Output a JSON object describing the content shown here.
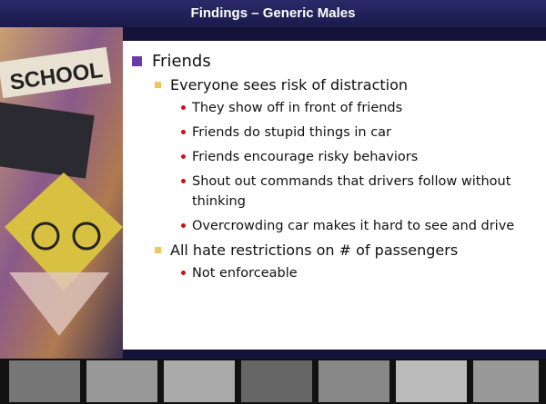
{
  "slide": {
    "title": "Findings – Generic Males",
    "items": [
      {
        "text": "Friends",
        "children": [
          {
            "text": "Everyone sees risk of distraction",
            "children": [
              {
                "text": "They show off in front of friends"
              },
              {
                "text": "Friends do stupid things in car"
              },
              {
                "text": "Friends encourage risky behaviors"
              },
              {
                "text": "Shout out commands that drivers follow without thinking"
              },
              {
                "text": "Overcrowding car makes it hard to see and drive"
              }
            ]
          },
          {
            "text": "All hate restrictions on # of passengers",
            "children": [
              {
                "text": "Not enforceable"
              }
            ]
          }
        ]
      }
    ]
  }
}
